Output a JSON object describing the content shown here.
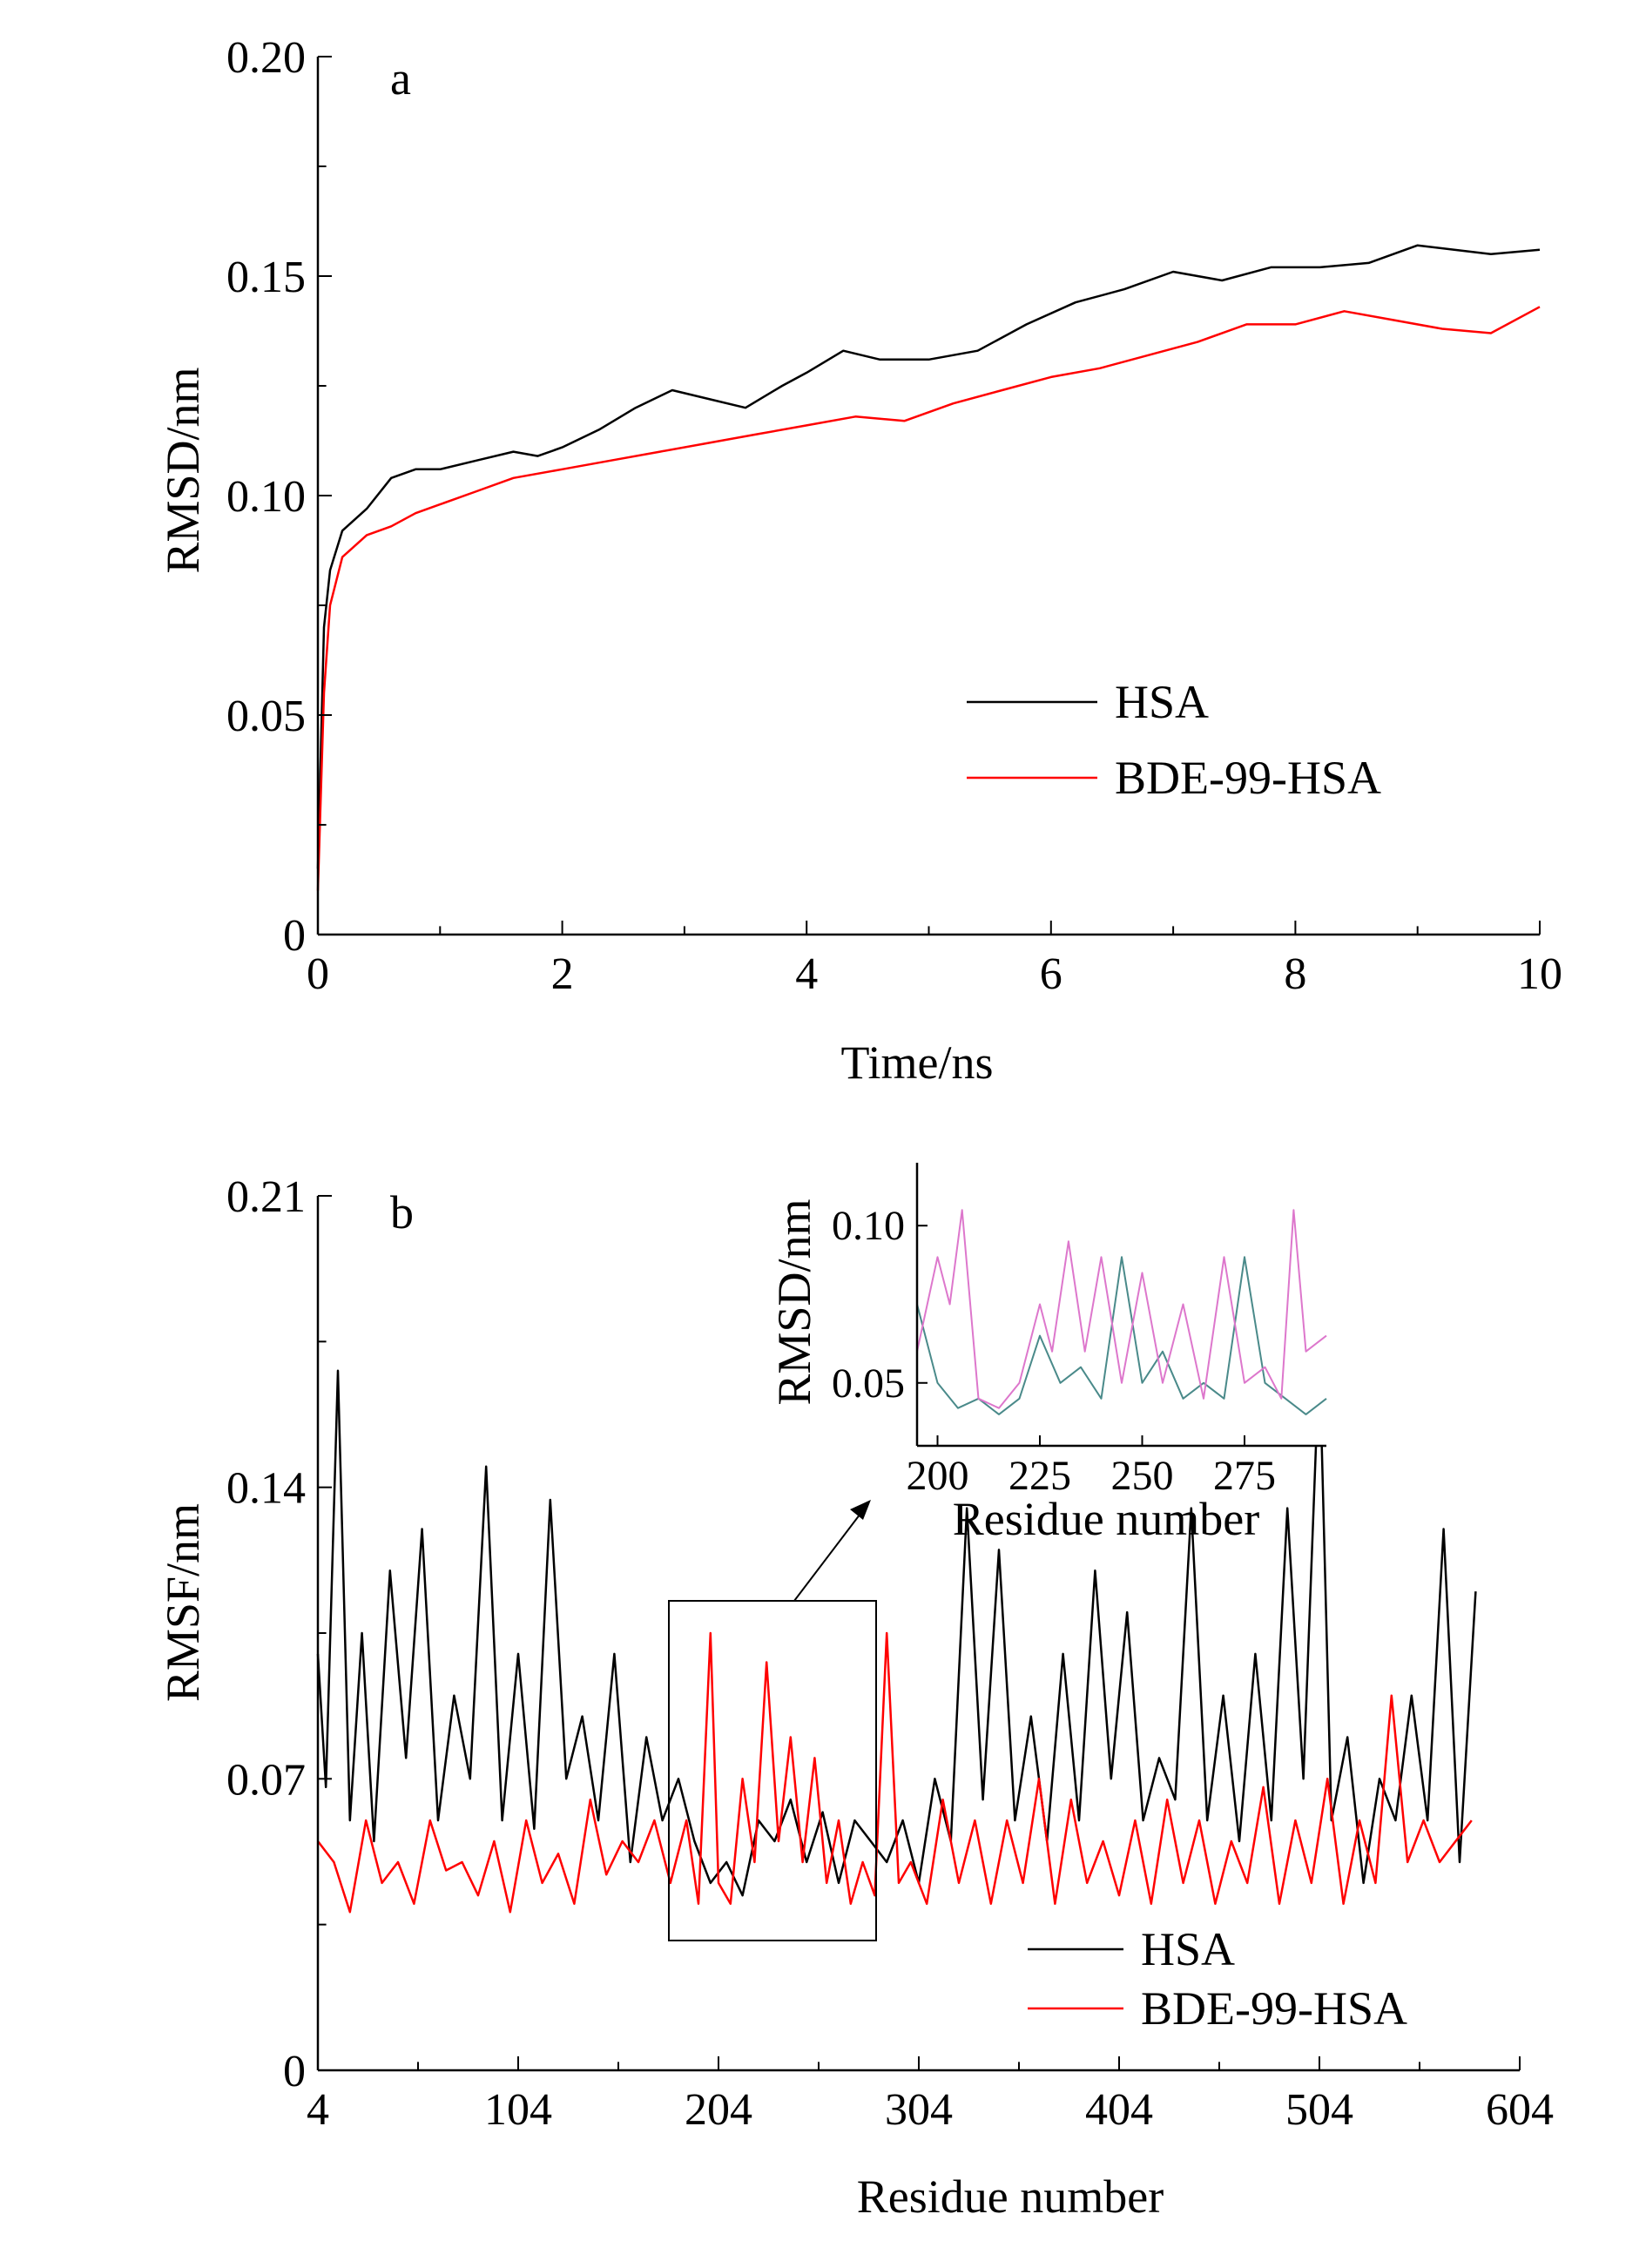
{
  "chart_data": [
    {
      "panel": "a",
      "type": "line",
      "xlabel": "Time/ns",
      "ylabel": "RMSD/nm",
      "xlim": [
        0,
        10
      ],
      "ylim": [
        0,
        0.2
      ],
      "x_ticks": [
        "0",
        "2",
        "4",
        "6",
        "8",
        "10"
      ],
      "y_ticks": [
        "0",
        "0.05",
        "0.10",
        "0.15",
        "0.20"
      ],
      "legend_position": "middle-right",
      "series": [
        {
          "name": "HSA",
          "color": "#000000",
          "x": [
            0,
            0.05,
            0.1,
            0.2,
            0.4,
            0.6,
            0.8,
            1.0,
            1.3,
            1.6,
            1.8,
            2.0,
            2.3,
            2.6,
            2.9,
            3.2,
            3.5,
            3.8,
            4.0,
            4.3,
            4.6,
            5.0,
            5.4,
            5.8,
            6.2,
            6.6,
            7.0,
            7.4,
            7.8,
            8.2,
            8.6,
            9.0,
            9.3,
            9.6,
            10.0
          ],
          "y": [
            0.015,
            0.07,
            0.083,
            0.092,
            0.097,
            0.104,
            0.106,
            0.106,
            0.108,
            0.11,
            0.109,
            0.111,
            0.115,
            0.12,
            0.124,
            0.122,
            0.12,
            0.125,
            0.128,
            0.133,
            0.131,
            0.131,
            0.133,
            0.139,
            0.144,
            0.147,
            0.151,
            0.149,
            0.152,
            0.152,
            0.153,
            0.157,
            0.156,
            0.155,
            0.156
          ]
        },
        {
          "name": "BDE-99-HSA",
          "color": "#ff0000",
          "x": [
            0,
            0.05,
            0.1,
            0.2,
            0.4,
            0.6,
            0.8,
            1.0,
            1.3,
            1.6,
            2.0,
            2.4,
            2.8,
            3.2,
            3.6,
            4.0,
            4.4,
            4.8,
            5.2,
            5.6,
            6.0,
            6.4,
            6.8,
            7.2,
            7.6,
            8.0,
            8.4,
            8.8,
            9.2,
            9.6,
            10.0
          ],
          "y": [
            0.01,
            0.055,
            0.075,
            0.086,
            0.091,
            0.093,
            0.096,
            0.098,
            0.101,
            0.104,
            0.106,
            0.108,
            0.11,
            0.112,
            0.114,
            0.116,
            0.118,
            0.117,
            0.121,
            0.124,
            0.127,
            0.129,
            0.132,
            0.135,
            0.139,
            0.139,
            0.142,
            0.14,
            0.138,
            0.137,
            0.143
          ]
        }
      ]
    },
    {
      "panel": "b",
      "type": "line",
      "xlabel": "Residue number",
      "ylabel": "RMSF/nm",
      "xlim": [
        4,
        604
      ],
      "ylim": [
        0,
        0.21
      ],
      "x_ticks": [
        "4",
        "104",
        "204",
        "304",
        "404",
        "504",
        "604"
      ],
      "y_ticks": [
        "0",
        "0.07",
        "0.14",
        "0.21"
      ],
      "legend_position": "bottom-right",
      "series": [
        {
          "name": "HSA",
          "color": "#000000",
          "x": [
            4,
            8,
            14,
            20,
            26,
            32,
            40,
            48,
            56,
            64,
            72,
            80,
            88,
            96,
            104,
            112,
            120,
            128,
            136,
            144,
            152,
            160,
            168,
            176,
            184,
            192,
            200,
            208,
            216,
            224,
            232,
            240,
            248,
            256,
            264,
            272,
            280,
            288,
            296,
            304,
            312,
            320,
            328,
            336,
            344,
            352,
            360,
            368,
            376,
            384,
            392,
            400,
            408,
            416,
            424,
            432,
            440,
            448,
            456,
            464,
            472,
            480,
            488,
            496,
            504,
            510,
            518,
            526,
            534,
            542,
            550,
            558,
            566,
            574,
            582
          ],
          "y": [
            0.1,
            0.068,
            0.168,
            0.06,
            0.105,
            0.055,
            0.12,
            0.075,
            0.13,
            0.06,
            0.09,
            0.07,
            0.145,
            0.06,
            0.1,
            0.058,
            0.137,
            0.07,
            0.085,
            0.06,
            0.1,
            0.05,
            0.08,
            0.06,
            0.07,
            0.055,
            0.045,
            0.05,
            0.042,
            0.06,
            0.055,
            0.065,
            0.05,
            0.062,
            0.045,
            0.06,
            0.055,
            0.05,
            0.06,
            0.045,
            0.07,
            0.055,
            0.135,
            0.065,
            0.125,
            0.06,
            0.085,
            0.055,
            0.1,
            0.06,
            0.12,
            0.07,
            0.11,
            0.06,
            0.075,
            0.065,
            0.135,
            0.06,
            0.09,
            0.055,
            0.1,
            0.06,
            0.135,
            0.07,
            0.172,
            0.06,
            0.08,
            0.045,
            0.07,
            0.06,
            0.09,
            0.06,
            0.13,
            0.05,
            0.115
          ]
        },
        {
          "name": "BDE-99-HSA",
          "color": "#ff0000",
          "x": [
            4,
            12,
            20,
            28,
            36,
            44,
            52,
            60,
            68,
            76,
            84,
            92,
            100,
            108,
            116,
            124,
            132,
            140,
            148,
            156,
            164,
            172,
            180,
            188,
            194,
            200,
            204,
            210,
            216,
            222,
            228,
            234,
            240,
            246,
            252,
            258,
            264,
            270,
            276,
            282,
            288,
            294,
            300,
            308,
            316,
            324,
            332,
            340,
            348,
            356,
            364,
            372,
            380,
            388,
            396,
            404,
            412,
            420,
            428,
            436,
            444,
            452,
            460,
            468,
            476,
            484,
            492,
            500,
            508,
            516,
            524,
            532,
            540,
            548,
            556,
            564,
            572,
            580
          ],
          "y": [
            0.055,
            0.05,
            0.038,
            0.06,
            0.045,
            0.05,
            0.04,
            0.06,
            0.048,
            0.05,
            0.042,
            0.055,
            0.038,
            0.06,
            0.045,
            0.052,
            0.04,
            0.065,
            0.047,
            0.055,
            0.05,
            0.06,
            0.045,
            0.06,
            0.04,
            0.105,
            0.045,
            0.04,
            0.07,
            0.05,
            0.098,
            0.055,
            0.08,
            0.05,
            0.075,
            0.045,
            0.06,
            0.04,
            0.05,
            0.042,
            0.105,
            0.045,
            0.05,
            0.04,
            0.065,
            0.045,
            0.06,
            0.04,
            0.06,
            0.045,
            0.07,
            0.04,
            0.065,
            0.045,
            0.055,
            0.042,
            0.06,
            0.04,
            0.065,
            0.045,
            0.06,
            0.04,
            0.055,
            0.045,
            0.068,
            0.04,
            0.06,
            0.045,
            0.07,
            0.04,
            0.06,
            0.045,
            0.09,
            0.05,
            0.06,
            0.05,
            0.055,
            0.06
          ]
        }
      ],
      "annotations": [
        "Box highlighting residues approximately 190-290 with an arrow to the inset"
      ],
      "inset": {
        "type": "line",
        "xlabel": "Residue number",
        "ylabel": "RMSD/nm",
        "xlim": [
          195,
          295
        ],
        "ylim": [
          0.03,
          0.12
        ],
        "x_ticks": [
          "200",
          "225",
          "250",
          "275"
        ],
        "y_ticks": [
          "0.05",
          "0.10"
        ],
        "series": [
          {
            "name": "HSA",
            "color": "#4a8a8a",
            "x": [
              195,
              200,
              205,
              210,
              215,
              220,
              225,
              230,
              235,
              240,
              245,
              250,
              255,
              260,
              265,
              270,
              275,
              280,
              285,
              290,
              295
            ],
            "y": [
              0.075,
              0.05,
              0.042,
              0.045,
              0.04,
              0.045,
              0.065,
              0.05,
              0.055,
              0.045,
              0.09,
              0.05,
              0.06,
              0.045,
              0.05,
              0.045,
              0.09,
              0.05,
              0.045,
              0.04,
              0.045
            ]
          },
          {
            "name": "BDE-99-HSA",
            "color": "#dd77cc",
            "x": [
              195,
              200,
              203,
              206,
              210,
              215,
              220,
              225,
              228,
              232,
              236,
              240,
              245,
              250,
              255,
              260,
              265,
              270,
              275,
              280,
              284,
              287,
              290,
              295
            ],
            "y": [
              0.06,
              0.09,
              0.075,
              0.105,
              0.045,
              0.042,
              0.05,
              0.075,
              0.06,
              0.095,
              0.06,
              0.09,
              0.05,
              0.085,
              0.05,
              0.075,
              0.045,
              0.09,
              0.05,
              0.055,
              0.045,
              0.105,
              0.06,
              0.065
            ]
          }
        ]
      }
    }
  ],
  "panel_a": {
    "label": "a",
    "xlabel": "Time/ns",
    "ylabel": "RMSD/nm",
    "legend": [
      "HSA",
      "BDE-99-HSA"
    ]
  },
  "panel_b": {
    "label": "b",
    "xlabel": "Residue number",
    "ylabel": "RMSF/nm",
    "legend": [
      "HSA",
      "BDE-99-HSA"
    ],
    "inset_xlabel": "Residue number",
    "inset_ylabel": "RMSD/nm"
  }
}
